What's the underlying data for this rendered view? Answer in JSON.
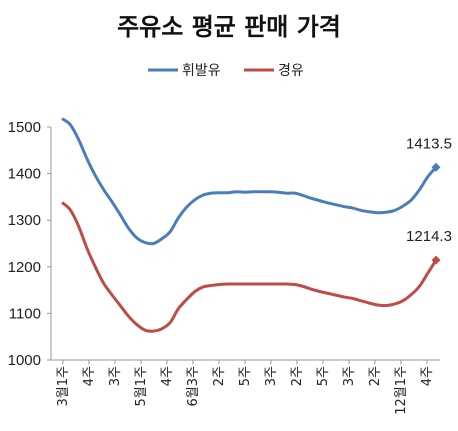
{
  "chart_data": {
    "type": "line",
    "title": "주유소 평균 판매 가격",
    "ylim": [
      1000,
      1500
    ],
    "yticks": [
      1000,
      1100,
      1200,
      1300,
      1400,
      1500
    ],
    "xtick_labels": [
      "3월1주",
      "4주",
      "3주",
      "5월1주",
      "4주",
      "6월3주",
      "2주",
      "5주",
      "3주",
      "2주",
      "5주",
      "3주",
      "2주",
      "12월1주",
      "4주"
    ],
    "grid": false,
    "legend_position": "top",
    "series": [
      {
        "name": "휘발유",
        "color": "#4a7ebb",
        "values": [
          1518,
          1505,
          1473,
          1432,
          1396,
          1366,
          1340,
          1312,
          1283,
          1262,
          1252,
          1250,
          1260,
          1275,
          1305,
          1328,
          1344,
          1354,
          1358,
          1359,
          1359,
          1361,
          1360,
          1361,
          1361,
          1361,
          1360,
          1358,
          1358,
          1353,
          1347,
          1342,
          1337,
          1333,
          1329,
          1326,
          1321,
          1318,
          1316,
          1317,
          1321,
          1330,
          1343,
          1365,
          1393,
          1413.5
        ],
        "end_label": "1413.5"
      },
      {
        "name": "경유",
        "color": "#be4b48",
        "values": [
          1338,
          1322,
          1287,
          1240,
          1200,
          1165,
          1140,
          1117,
          1094,
          1076,
          1064,
          1062,
          1067,
          1080,
          1110,
          1130,
          1147,
          1157,
          1160,
          1162,
          1163,
          1163,
          1163,
          1163,
          1163,
          1163,
          1163,
          1163,
          1162,
          1158,
          1152,
          1147,
          1143,
          1139,
          1135,
          1132,
          1127,
          1122,
          1118,
          1117,
          1120,
          1127,
          1140,
          1158,
          1186,
          1214.3
        ],
        "end_label": "1214.3"
      }
    ]
  }
}
